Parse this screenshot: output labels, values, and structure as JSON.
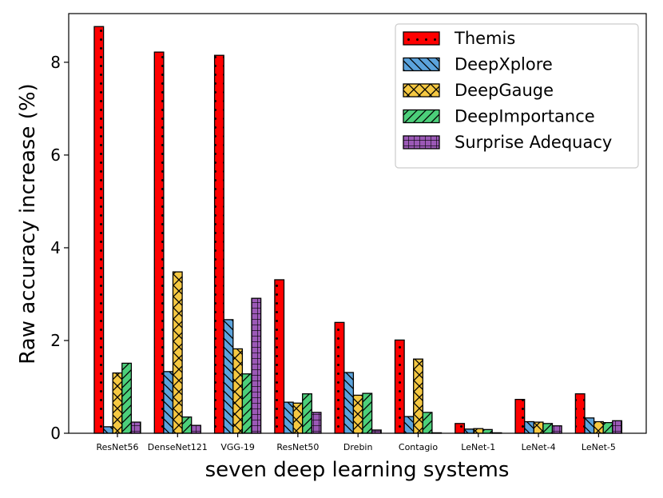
{
  "chart_data": {
    "type": "bar",
    "title": "",
    "xlabel": "seven deep learning systems",
    "ylabel": "Raw accuracy increase (%)",
    "ylim": [
      0,
      9.05
    ],
    "yticks": [
      0,
      2,
      4,
      6,
      8
    ],
    "grid": false,
    "legend_position": "top-right",
    "categories": [
      "ResNet56",
      "DenseNet121",
      "VGG-19",
      "ResNet50",
      "Drebin",
      "Contagio",
      "LeNet-1",
      "LeNet-4",
      "LeNet-5"
    ],
    "series": [
      {
        "name": "Themis",
        "color": "#ff0000",
        "pattern": "dots",
        "values": [
          8.77,
          8.22,
          8.15,
          3.31,
          2.39,
          2.01,
          0.21,
          0.73,
          0.85
        ]
      },
      {
        "name": "DeepXplore",
        "color": "#5ba3dc",
        "pattern": "backslash",
        "values": [
          0.14,
          1.33,
          2.45,
          0.67,
          1.31,
          0.36,
          0.09,
          0.25,
          0.33
        ]
      },
      {
        "name": "DeepGauge",
        "color": "#f5c842",
        "pattern": "cross",
        "values": [
          1.3,
          3.48,
          1.82,
          0.65,
          0.82,
          1.6,
          0.1,
          0.24,
          0.25
        ]
      },
      {
        "name": "DeepImportance",
        "color": "#4ccf7a",
        "pattern": "slash",
        "values": [
          1.51,
          0.35,
          1.28,
          0.85,
          0.86,
          0.45,
          0.08,
          0.21,
          0.23
        ]
      },
      {
        "name": "Surprise Adequacy",
        "color": "#9b59b6",
        "pattern": "grid",
        "values": [
          0.24,
          0.17,
          2.91,
          0.45,
          0.07,
          0.01,
          0.01,
          0.16,
          0.27
        ]
      }
    ]
  }
}
